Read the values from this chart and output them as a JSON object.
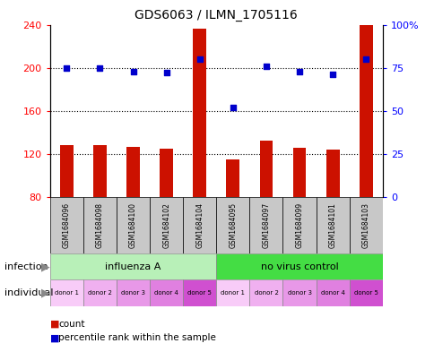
{
  "title": "GDS6063 / ILMN_1705116",
  "samples": [
    "GSM1684096",
    "GSM1684098",
    "GSM1684100",
    "GSM1684102",
    "GSM1684104",
    "GSM1684095",
    "GSM1684097",
    "GSM1684099",
    "GSM1684101",
    "GSM1684103"
  ],
  "counts": [
    128,
    128,
    127,
    125,
    236,
    115,
    132,
    126,
    124,
    240
  ],
  "percentile_ranks": [
    75,
    75,
    73,
    72,
    80,
    52,
    76,
    73,
    71,
    80
  ],
  "ylim_left": [
    80,
    240
  ],
  "ylim_right": [
    0,
    100
  ],
  "yticks_left": [
    80,
    120,
    160,
    200,
    240
  ],
  "yticks_right": [
    0,
    25,
    50,
    75,
    100
  ],
  "infection_groups": [
    {
      "label": "influenza A",
      "start": 0,
      "end": 5,
      "color": "#b8f0b8"
    },
    {
      "label": "no virus control",
      "start": 5,
      "end": 10,
      "color": "#44dd44"
    }
  ],
  "individual_labels": [
    "donor 1",
    "donor 2",
    "donor 3",
    "donor 4",
    "donor 5",
    "donor 1",
    "donor 2",
    "donor 3",
    "donor 4",
    "donor 5"
  ],
  "individual_colors": [
    "#f8d0f8",
    "#f0b8f0",
    "#e8a0e8",
    "#e090e0",
    "#cc55cc",
    "#f8d0f8",
    "#f0b8f0",
    "#e8a0e8",
    "#e090e0",
    "#cc55cc"
  ],
  "bar_color": "#cc1100",
  "dot_color": "#0000cc",
  "bar_bottom": 80,
  "sample_box_color": "#c8c8c8",
  "background_color": "#ffffff",
  "label_infection": "infection",
  "label_individual": "individual",
  "legend_count": "count",
  "legend_percentile": "percentile rank within the sample",
  "arrow_color": "#888888"
}
